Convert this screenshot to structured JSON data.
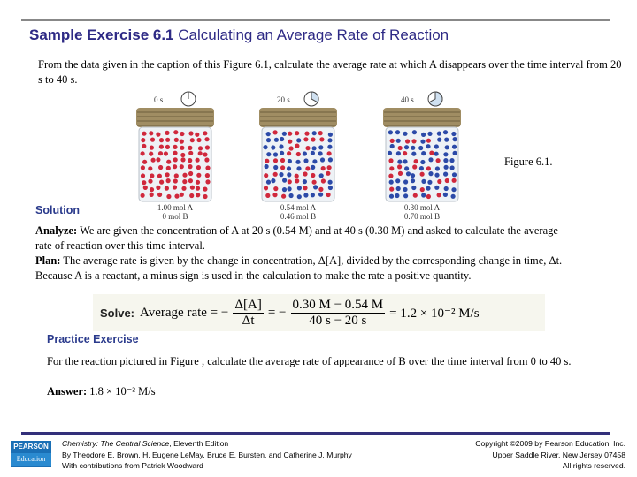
{
  "title": {
    "bold": "Sample Exercise 6.1",
    "rest": "Calculating an Average Rate of Reaction"
  },
  "intro": "From the data given in the caption of  this Figure 6.1, calculate the average rate at which A disappears over the time interval from 20 s to 40 s.",
  "figure": {
    "caption": "Figure 6.1.",
    "jars": [
      {
        "time": "0 s",
        "a": "1.00 mol A",
        "b": "0 mol B",
        "fraction_b": 0,
        "clock_fraction": 0
      },
      {
        "time": "20 s",
        "a": "0.54 mol A",
        "b": "0.46 mol B",
        "fraction_b": 0.46,
        "clock_fraction": 0.33
      },
      {
        "time": "40 s",
        "a": "0.30 mol A",
        "b": "0.70 mol B",
        "fraction_b": 0.7,
        "clock_fraction": 0.67
      }
    ],
    "colors": {
      "A": "#d0283c",
      "B": "#2c4aa8"
    }
  },
  "solution": {
    "heading": "Solution",
    "analyze_label": "Analyze:",
    "analyze": " We are given the concentration of A at 20 s (0.54 M) and at 40 s (0.30 M) and asked to calculate the average rate of reaction over this time interval.",
    "plan_label": "Plan:",
    "plan": " The average rate is given by the change in concentration, Δ[A], divided by the corresponding change in time, Δt. Because A is a reactant, a minus sign is used in the calculation to make the rate a positive quantity.",
    "solve_label": "Solve:",
    "solve_lhs": "Average rate = −",
    "frac1_num": "Δ[A]",
    "frac1_den": "Δt",
    "eq2": "= −",
    "frac2_num": "0.30 M − 0.54 M",
    "frac2_den": "40 s − 20 s",
    "result": "= 1.2 × 10⁻² M/s"
  },
  "practice": {
    "heading": "Practice Exercise",
    "text": "For the reaction pictured in Figure , calculate the average rate of appearance of B over the time interval from 0 to 40 s.",
    "answer_label": "Answer:",
    "answer": " 1.8 × 10⁻² M/s"
  },
  "footer": {
    "logo_top": "PEARSON",
    "logo_bottom": "Education",
    "book_italic": "Chemistry: The Central Science",
    "book_rest": ", Eleventh Edition",
    "authors": "By Theodore E. Brown, H. Eugene LeMay, Bruce E. Bursten, and Catherine J. Murphy",
    "contrib": "With contributions from Patrick Woodward",
    "copyright": "Copyright ©2009 by Pearson Education, Inc.",
    "address": "Upper Saddle River, New Jersey 07458",
    "rights": "All rights reserved."
  }
}
